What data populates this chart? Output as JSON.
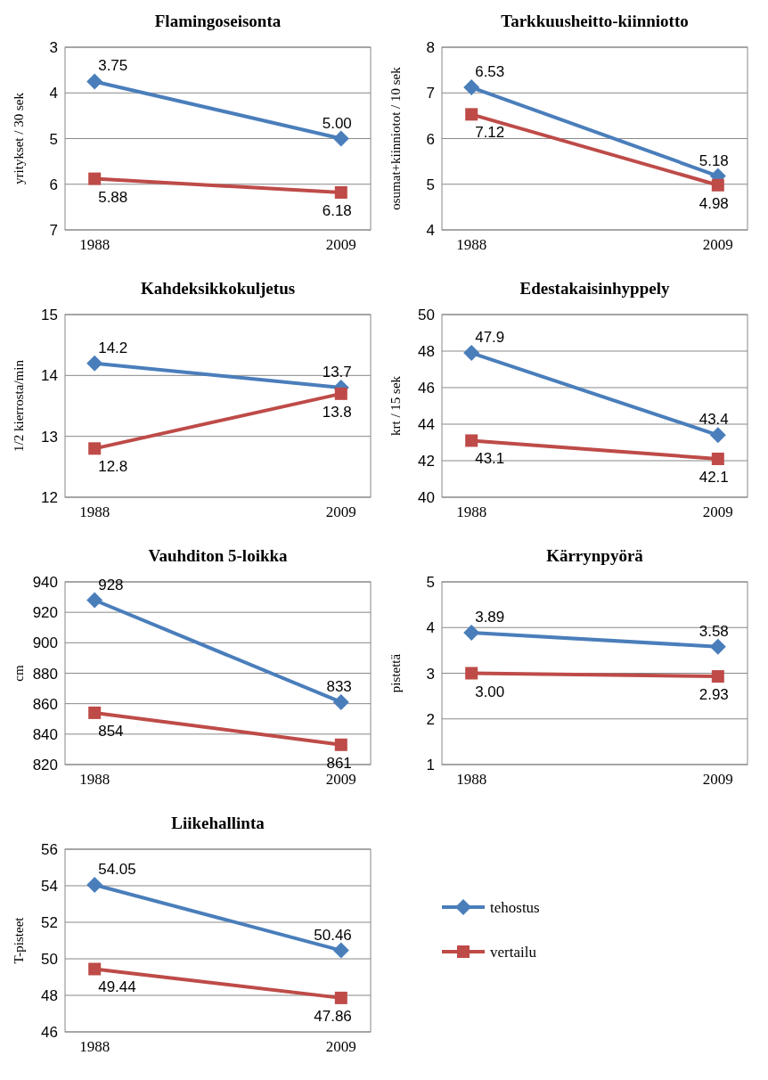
{
  "chart_data": [
    {
      "type": "line",
      "title": "Flamingoseisonta",
      "ylabel": "yritykset / 30 sek",
      "categories": [
        "1988",
        "2009"
      ],
      "ylim": [
        7,
        3
      ],
      "yticks": [
        3,
        4,
        5,
        6,
        7
      ],
      "grid": "y",
      "legend": false,
      "series": [
        {
          "color": "#4a7ebb",
          "marker": "diamond",
          "values": [
            3.75,
            5.0
          ],
          "value_labels": [
            "3.75",
            "5.00"
          ]
        },
        {
          "color": "#be4b48",
          "marker": "square",
          "values": [
            5.88,
            6.18
          ],
          "value_labels": [
            "5.88",
            "6.18"
          ]
        }
      ]
    },
    {
      "type": "line",
      "title": "Tarkkuusheitto-kiinniotto",
      "ylabel": "osumat+kiinniotot / 10 sek",
      "categories": [
        "1988",
        "2009"
      ],
      "ylim": [
        4,
        8
      ],
      "yticks": [
        4,
        5,
        6,
        7,
        8
      ],
      "grid": "y",
      "legend": false,
      "series": [
        {
          "color": "#4a7ebb",
          "marker": "diamond",
          "values": [
            7.12,
            5.18
          ],
          "value_labels": [
            null,
            "5.18"
          ]
        },
        {
          "color": "#be4b48",
          "marker": "square",
          "values": [
            6.53,
            4.98
          ],
          "value_labels": [
            null,
            "4.98"
          ]
        }
      ],
      "annotations": [
        {
          "text": "6.53",
          "x": "1988",
          "y": 7.12
        },
        {
          "text": "7.12",
          "x": "1988",
          "y": 6.53
        }
      ]
    },
    {
      "type": "line",
      "title": "Kahdeksikkokuljetus",
      "ylabel": "1/2 kierrosta/min",
      "categories": [
        "1988",
        "2009"
      ],
      "ylim": [
        12,
        15
      ],
      "yticks": [
        12,
        13,
        14,
        15
      ],
      "grid": "y",
      "legend": false,
      "series": [
        {
          "color": "#4a7ebb",
          "marker": "diamond",
          "values": [
            14.2,
            13.8
          ],
          "value_labels": [
            "14.2",
            null
          ]
        },
        {
          "color": "#be4b48",
          "marker": "square",
          "values": [
            12.8,
            13.7
          ],
          "value_labels": [
            "12.8",
            null
          ]
        }
      ],
      "annotations": [
        {
          "text": "13.7",
          "x": "2009",
          "y": 13.8
        },
        {
          "text": "13.8",
          "x": "2009",
          "y": 13.7
        }
      ]
    },
    {
      "type": "line",
      "title": "Edestakaisinhyppely",
      "ylabel": "krt / 15 sek",
      "categories": [
        "1988",
        "2009"
      ],
      "ylim": [
        40,
        50
      ],
      "yticks": [
        40,
        42,
        44,
        46,
        48,
        50
      ],
      "grid": "y",
      "legend": false,
      "series": [
        {
          "color": "#4a7ebb",
          "marker": "diamond",
          "values": [
            47.9,
            43.4
          ],
          "value_labels": [
            "47.9",
            "43.4"
          ]
        },
        {
          "color": "#be4b48",
          "marker": "square",
          "values": [
            43.1,
            42.1
          ],
          "value_labels": [
            "43.1",
            "42.1"
          ]
        }
      ]
    },
    {
      "type": "line",
      "title": "Vauhditon 5-loikka",
      "ylabel": "cm",
      "categories": [
        "1988",
        "2009"
      ],
      "ylim": [
        820,
        940
      ],
      "yticks": [
        820,
        840,
        860,
        880,
        900,
        920,
        940
      ],
      "grid": "y",
      "legend": false,
      "series": [
        {
          "color": "#4a7ebb",
          "marker": "diamond",
          "values": [
            928,
            861
          ],
          "value_labels": [
            "928",
            null
          ]
        },
        {
          "color": "#be4b48",
          "marker": "square",
          "values": [
            854,
            833
          ],
          "value_labels": [
            "854",
            null
          ]
        }
      ],
      "annotations": [
        {
          "text": "833",
          "x": "2009",
          "y": 861
        },
        {
          "text": "861",
          "x": "2009",
          "y": 833
        }
      ]
    },
    {
      "type": "line",
      "title": "Kärrynpyörä",
      "ylabel": "pistettä",
      "categories": [
        "1988",
        "2009"
      ],
      "ylim": [
        1,
        5
      ],
      "yticks": [
        1,
        2,
        3,
        4,
        5
      ],
      "grid": "y",
      "legend": false,
      "series": [
        {
          "color": "#4a7ebb",
          "marker": "diamond",
          "values": [
            3.89,
            3.58
          ],
          "value_labels": [
            "3.89",
            "3.58"
          ]
        },
        {
          "color": "#be4b48",
          "marker": "square",
          "values": [
            3.0,
            2.93
          ],
          "value_labels": [
            "3.00",
            "2.93"
          ]
        }
      ]
    },
    {
      "type": "line",
      "title": "Liikehallinta",
      "ylabel": "T-pisteet",
      "categories": [
        "1988",
        "2009"
      ],
      "ylim": [
        46,
        56
      ],
      "yticks": [
        46,
        48,
        50,
        52,
        54,
        56
      ],
      "grid": "y",
      "legend": "right",
      "series": [
        {
          "name": "tehostus",
          "color": "#4a7ebb",
          "marker": "diamond",
          "values": [
            54.05,
            50.46
          ],
          "value_labels": [
            "54.05",
            "50.46"
          ]
        },
        {
          "name": "vertailu",
          "color": "#be4b48",
          "marker": "square",
          "values": [
            49.44,
            47.86
          ],
          "value_labels": [
            "49.44",
            "47.86"
          ]
        }
      ]
    }
  ]
}
